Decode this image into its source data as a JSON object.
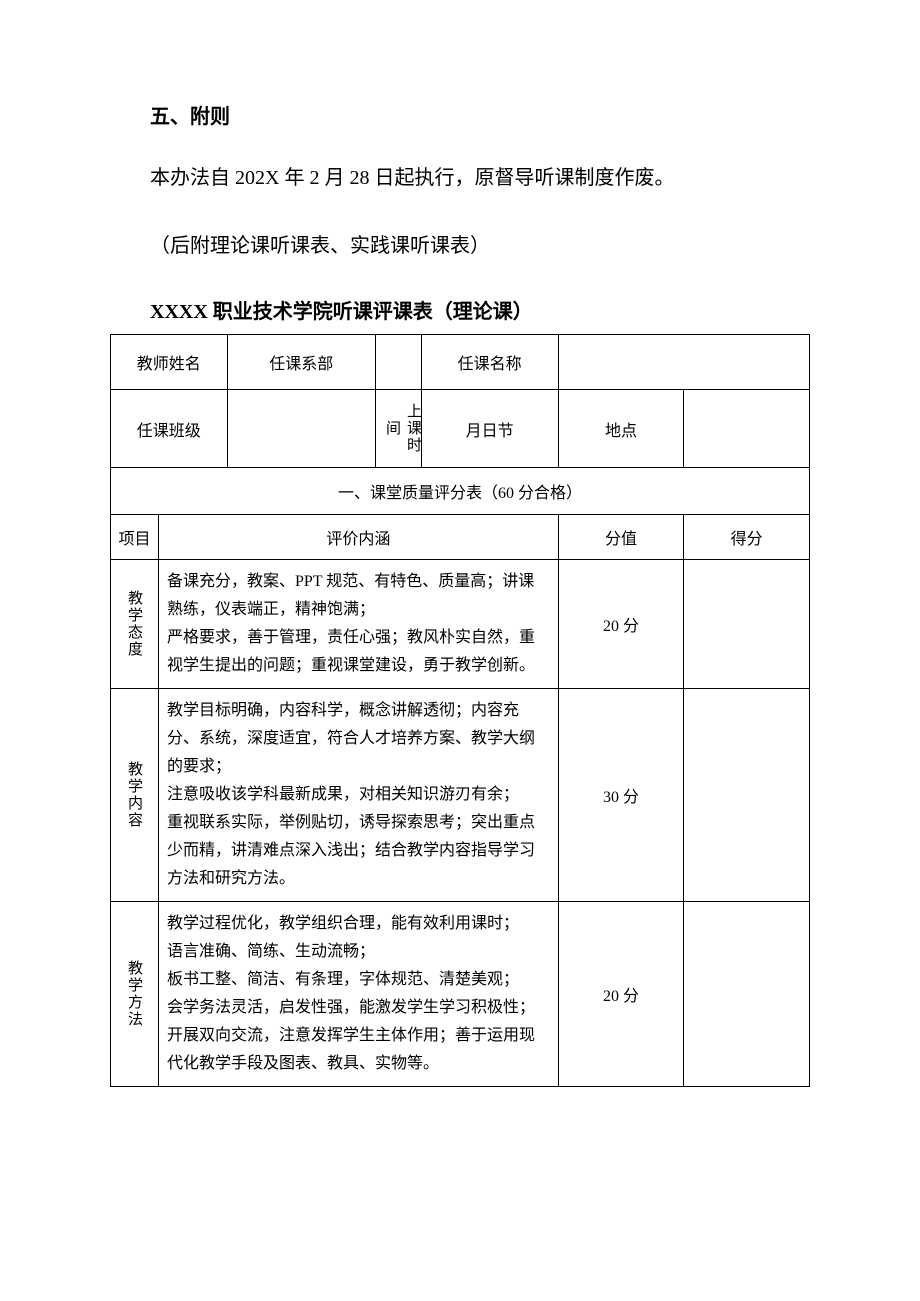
{
  "section_title": "五、附则",
  "paragraph1": "本办法自 202X 年 2 月 28 日起执行，原督导听课制度作废。",
  "paragraph2": "（后附理论课听课表、实践课听课表）",
  "table_title": "XXXX 职业技术学院听课评课表（理论课）",
  "header_row1": {
    "teacher_name_label": "教师姓名",
    "teacher_name_value": "",
    "department_label": "任课系部",
    "department_value": "",
    "course_name_label": "任课名称",
    "course_name_value": ""
  },
  "header_row2": {
    "class_label": "任课班级",
    "class_value": "",
    "time_label": "上课时间",
    "date_label": "月日节",
    "location_label": "地点",
    "location_value": ""
  },
  "section1_title": "一、课堂质量评分表（60 分合格）",
  "columns": {
    "project": "项目",
    "content": "评价内涵",
    "score": "分值",
    "points": "得分"
  },
  "rows": [
    {
      "project": "教学态度",
      "content": "备课充分，教案、PPT 规范、有特色、质量高；讲课熟练，仪表端正，精神饱满；\n严格要求，善于管理，责任心强；教风朴实自然，重视学生提出的问题；重视课堂建设，勇于教学创新。",
      "score": "20 分",
      "points": ""
    },
    {
      "project": "教学内容",
      "content": "教学目标明确，内容科学，概念讲解透彻；内容充分、系统，深度适宜，符合人才培养方案、教学大纲的要求；\n注意吸收该学科最新成果，对相关知识游刃有余；\n重视联系实际，举例贴切，诱导探索思考；突出重点少而精，讲清难点深入浅出；结合教学内容指导学习方法和研究方法。",
      "score": "30 分",
      "points": ""
    },
    {
      "project": "教学方法",
      "content": "教学过程优化，教学组织合理，能有效利用课时；\n语言准确、简练、生动流畅；\n板书工整、简洁、有条理，字体规范、清楚美观；\n会学务法灵活，启发性强，能激发学生学习积极性；\n开展双向交流，注意发挥学生主体作用；善于运用现代化教学手段及图表、教具、实物等。",
      "score": "20 分",
      "points": ""
    }
  ]
}
